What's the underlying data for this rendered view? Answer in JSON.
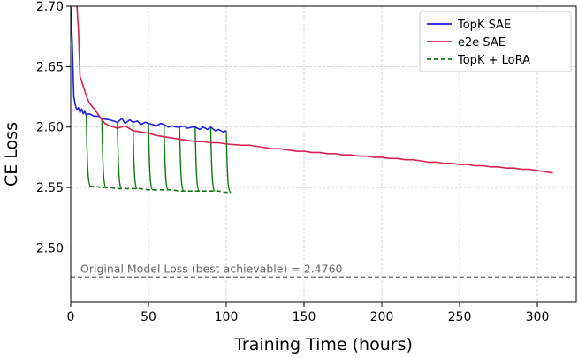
{
  "chart_data": {
    "type": "line",
    "xlabel": "Training Time (hours)",
    "ylabel": "CE Loss",
    "xlim": [
      0,
      325
    ],
    "ylim": [
      2.455,
      2.7
    ],
    "x_ticks": [
      0,
      50,
      100,
      150,
      200,
      250,
      300
    ],
    "y_ticks": [
      2.5,
      2.55,
      2.6,
      2.65,
      2.7
    ],
    "x_tick_labels": [
      "0",
      "50",
      "100",
      "150",
      "200",
      "250",
      "300"
    ],
    "y_tick_labels": [
      "2.50",
      "2.55",
      "2.60",
      "2.65",
      "2.70"
    ],
    "grid": true,
    "legend_position": "top-right",
    "series": [
      {
        "name": "TopK SAE",
        "color": "#1f1fe0",
        "style": "solid",
        "x": [
          0,
          1,
          2,
          3,
          4,
          5,
          6,
          7,
          8,
          9,
          10,
          12,
          15,
          18,
          20,
          25,
          30,
          33,
          35,
          38,
          40,
          43,
          45,
          48,
          50,
          53,
          55,
          58,
          60,
          63,
          65,
          68,
          70,
          73,
          75,
          78,
          80,
          83,
          85,
          88,
          90,
          93,
          95,
          98,
          100
        ],
        "y": [
          2.7,
          2.67,
          2.625,
          2.618,
          2.614,
          2.616,
          2.612,
          2.615,
          2.611,
          2.613,
          2.61,
          2.611,
          2.609,
          2.609,
          2.607,
          2.606,
          2.604,
          2.607,
          2.603,
          2.606,
          2.604,
          2.605,
          2.602,
          2.604,
          2.603,
          2.602,
          2.601,
          2.603,
          2.602,
          2.6,
          2.601,
          2.6,
          2.6,
          2.601,
          2.599,
          2.6,
          2.6,
          2.598,
          2.6,
          2.598,
          2.6,
          2.597,
          2.598,
          2.596,
          2.597
        ]
      },
      {
        "name": "e2e SAE",
        "color": "#d6234f",
        "style": "solid",
        "x": [
          4,
          5,
          6,
          8,
          10,
          12,
          15,
          18,
          20,
          22,
          25,
          28,
          30,
          35,
          40,
          45,
          50,
          55,
          60,
          65,
          70,
          75,
          80,
          85,
          90,
          95,
          100,
          110,
          115,
          120,
          125,
          130,
          135,
          140,
          145,
          150,
          155,
          160,
          165,
          170,
          175,
          180,
          185,
          190,
          195,
          200,
          205,
          210,
          215,
          220,
          225,
          230,
          235,
          240,
          245,
          250,
          255,
          260,
          265,
          270,
          275,
          280,
          285,
          290,
          295,
          300,
          305,
          310
        ],
        "y": [
          2.7,
          2.68,
          2.642,
          2.634,
          2.626,
          2.62,
          2.615,
          2.61,
          2.606,
          2.603,
          2.601,
          2.6,
          2.599,
          2.601,
          2.597,
          2.596,
          2.595,
          2.593,
          2.592,
          2.591,
          2.59,
          2.589,
          2.588,
          2.588,
          2.587,
          2.587,
          2.586,
          2.585,
          2.585,
          2.584,
          2.583,
          2.582,
          2.582,
          2.581,
          2.58,
          2.58,
          2.579,
          2.579,
          2.578,
          2.578,
          2.577,
          2.577,
          2.576,
          2.576,
          2.575,
          2.575,
          2.574,
          2.574,
          2.573,
          2.573,
          2.572,
          2.571,
          2.571,
          2.57,
          2.57,
          2.569,
          2.569,
          2.568,
          2.568,
          2.567,
          2.567,
          2.566,
          2.566,
          2.565,
          2.565,
          2.564,
          2.563,
          2.562
        ]
      },
      {
        "name": "TopK + LoRA",
        "color": "#117811",
        "style": "dashed",
        "x": [
          12,
          15,
          20,
          25,
          30,
          35,
          40,
          45,
          50,
          55,
          60,
          65,
          70,
          75,
          80,
          85,
          90,
          95,
          100,
          103
        ],
        "y": [
          2.551,
          2.551,
          2.55,
          2.55,
          2.549,
          2.549,
          2.549,
          2.549,
          2.548,
          2.548,
          2.548,
          2.548,
          2.547,
          2.547,
          2.547,
          2.547,
          2.547,
          2.547,
          2.546,
          2.546
        ]
      }
    ],
    "lora_spikes": [
      {
        "x0": 10,
        "top": 2.61,
        "bottom": 2.551
      },
      {
        "x0": 20,
        "top": 2.607,
        "bottom": 2.55
      },
      {
        "x0": 30,
        "top": 2.604,
        "bottom": 2.549
      },
      {
        "x0": 40,
        "top": 2.604,
        "bottom": 2.549
      },
      {
        "x0": 50,
        "top": 2.603,
        "bottom": 2.548
      },
      {
        "x0": 60,
        "top": 2.602,
        "bottom": 2.548
      },
      {
        "x0": 70,
        "top": 2.6,
        "bottom": 2.547
      },
      {
        "x0": 80,
        "top": 2.6,
        "bottom": 2.547
      },
      {
        "x0": 90,
        "top": 2.6,
        "bottom": 2.547
      },
      {
        "x0": 100,
        "top": 2.597,
        "bottom": 2.546
      }
    ],
    "reference_line": {
      "y": 2.476,
      "color": "#666666",
      "label": "Original Model Loss (best achievable) = 2.4760"
    }
  }
}
